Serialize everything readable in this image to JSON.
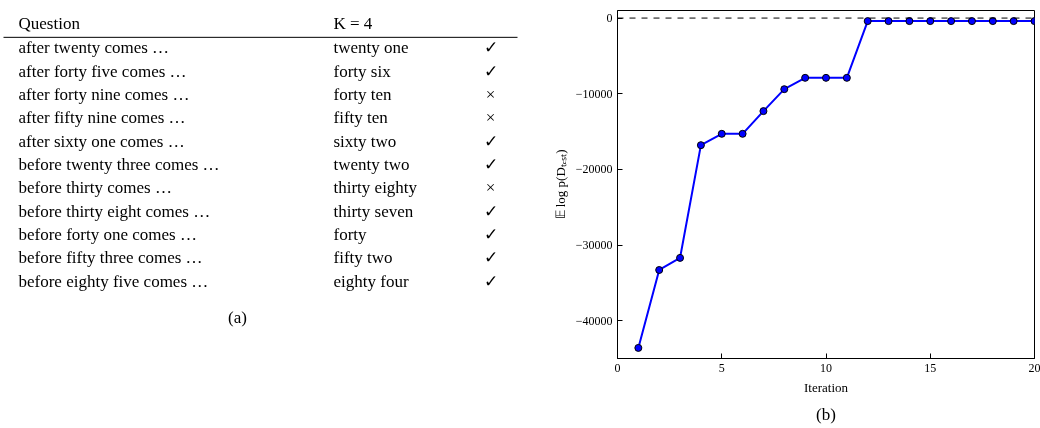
{
  "chart_data": [
    {
      "type": "other",
      "annotations": [
        "Question",
        "K = 4",
        "after twenty comes …",
        "twenty one",
        "✓",
        "after forty five comes …",
        "forty six",
        "✓",
        "after forty nine comes …",
        "forty ten",
        "×",
        "after fifty nine comes …",
        "fifty ten",
        "×",
        "after sixty one comes …",
        "sixty two",
        "✓",
        "before twenty three comes …",
        "twenty two",
        "✓",
        "before thirty comes …",
        "thirty eighty",
        "×",
        "before thirty eight comes …",
        "thirty seven",
        "✓",
        "before forty one comes …",
        "forty",
        "✓",
        "before fifty three comes …",
        "fifty two",
        "✓",
        "before eighty five comes …",
        "eighty four",
        "✓",
        "(a)"
      ]
    },
    {
      "type": "line",
      "xlabel": "Iteration",
      "ylabel": "𝔼 log p(Dₜₑₛₜ)",
      "annotations": [
        "(b)"
      ],
      "x": [
        1,
        2,
        3,
        4,
        5,
        6,
        7,
        8,
        9,
        10,
        11,
        12,
        13,
        14,
        15,
        16,
        17,
        18,
        19,
        20
      ],
      "series": [
        {
          "color": "#0000ff",
          "values": [
            -43600,
            -33300,
            -31700,
            -16800,
            -15300,
            -15300,
            -12300,
            -9400,
            -7900,
            -7900,
            -7900,
            -400,
            -400,
            -400,
            -400,
            -400,
            -400,
            -400,
            -400,
            -400
          ]
        }
      ],
      "xlim": [
        0,
        20
      ],
      "xticks": [
        0,
        5,
        10,
        15,
        20
      ],
      "ylim": [
        -45000,
        1000
      ],
      "yticks": [
        {
          "value": -40000,
          "label": "−40000"
        },
        {
          "value": -30000,
          "label": "−30000"
        },
        {
          "value": -20000,
          "label": "−20000"
        },
        {
          "value": -10000,
          "label": "−10000"
        },
        0
      ],
      "ref_lines": [
        {
          "axis": "y",
          "value": 0,
          "color": "#000000",
          "line_style": "dashed"
        }
      ],
      "marker": "circle",
      "line_style": "solid",
      "grid": false
    }
  ]
}
